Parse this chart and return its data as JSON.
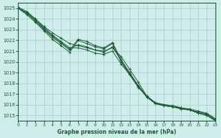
{
  "title": "Graphe pression niveau de la mer (hPa)",
  "background_color": "#ceecea",
  "grid_color": "#a8ccc8",
  "line_color": "#1a5c32",
  "xlim": [
    0,
    23
  ],
  "ylim": [
    1014.5,
    1025.5
  ],
  "xticks": [
    0,
    1,
    2,
    3,
    4,
    5,
    6,
    7,
    8,
    9,
    10,
    11,
    12,
    13,
    14,
    15,
    16,
    17,
    18,
    19,
    20,
    21,
    22,
    23
  ],
  "yticks": [
    1015,
    1016,
    1017,
    1018,
    1019,
    1020,
    1021,
    1022,
    1023,
    1024,
    1025
  ],
  "series": [
    [
      1025.0,
      1024.6,
      1024.0,
      1023.3,
      1022.7,
      1022.2,
      1021.7,
      1021.5,
      1021.3,
      1021.1,
      1021.0,
      1021.3,
      1020.5,
      1019.3,
      1018.1,
      1016.8,
      1016.1,
      1015.9,
      1015.8,
      1015.7,
      1015.6,
      1015.4,
      1015.2,
      1014.7
    ],
    [
      1025.0,
      1024.5,
      1023.8,
      1023.0,
      1022.3,
      1021.7,
      1021.1,
      1022.1,
      1021.9,
      1021.5,
      1021.3,
      1021.8,
      1020.2,
      1019.0,
      1017.8,
      1016.8,
      1016.1,
      1016.0,
      1015.9,
      1015.7,
      1015.5,
      1015.3,
      1015.1,
      1014.6
    ],
    [
      1025.0,
      1024.4,
      1023.7,
      1022.9,
      1022.1,
      1021.5,
      1020.9,
      1022.0,
      1021.7,
      1021.4,
      1021.2,
      1021.7,
      1020.0,
      1018.8,
      1017.6,
      1016.8,
      1016.2,
      1016.0,
      1015.9,
      1015.7,
      1015.5,
      1015.2,
      1015.0,
      1014.5
    ],
    [
      1025.1,
      1024.7,
      1024.0,
      1023.2,
      1022.5,
      1021.9,
      1021.3,
      1021.3,
      1021.1,
      1020.8,
      1020.7,
      1021.0,
      1019.8,
      1018.8,
      1017.7,
      1016.7,
      1016.1,
      1015.9,
      1015.8,
      1015.6,
      1015.5,
      1015.3,
      1015.1,
      1014.6
    ],
    [
      1025.0,
      1024.6,
      1023.9,
      1023.1,
      1022.4,
      1021.8,
      1021.2,
      1021.6,
      1021.4,
      1021.1,
      1020.9,
      1021.4,
      1020.1,
      1018.9,
      1017.7,
      1016.7,
      1016.1,
      1015.9,
      1015.8,
      1015.6,
      1015.5,
      1015.2,
      1015.0,
      1014.5
    ]
  ]
}
